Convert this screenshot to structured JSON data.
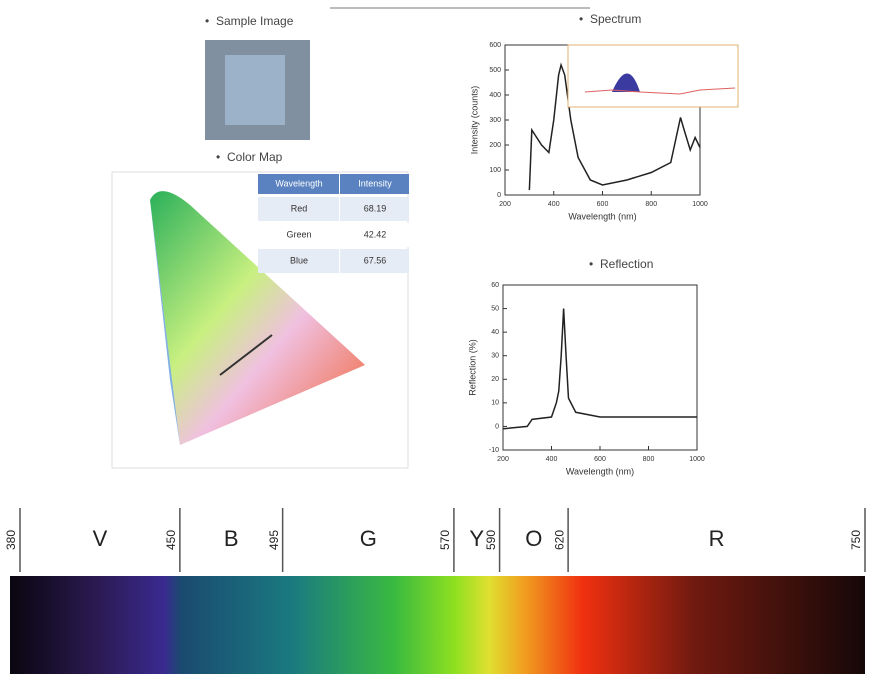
{
  "sample_image": {
    "title": "Sample Image"
  },
  "color_map": {
    "title": "Color Map",
    "table": {
      "header": [
        "Wavelength",
        "Intensity"
      ],
      "rows": [
        [
          "Red",
          "68.19"
        ],
        [
          "Green",
          "42.42"
        ],
        [
          "Blue",
          "67.56"
        ]
      ]
    }
  },
  "chart_data": [
    {
      "type": "line",
      "title": "Spectrum",
      "x_label": "Wavelength (nm)",
      "y_label": "Intensity (counts)",
      "x": [
        300,
        310,
        330,
        350,
        380,
        400,
        420,
        430,
        445,
        470,
        500,
        550,
        600,
        700,
        800,
        880,
        900,
        920,
        935,
        960,
        980,
        1000
      ],
      "series": [
        {
          "name": "Intensity",
          "color": "#222222",
          "values": [
            20,
            260,
            230,
            200,
            170,
            300,
            480,
            520,
            480,
            300,
            150,
            60,
            40,
            60,
            90,
            130,
            220,
            310,
            260,
            180,
            230,
            190
          ]
        }
      ],
      "xlim": [
        200,
        1000
      ],
      "xticks": [
        200,
        400,
        600,
        800,
        1000
      ],
      "ylim": [
        0,
        600
      ],
      "yticks": [
        0,
        100,
        200,
        300,
        400,
        500,
        600
      ]
    },
    {
      "type": "line",
      "title": "Reflection",
      "x_label": "Wavelength (nm)",
      "y_label": "Reflection (%)",
      "x": [
        200,
        300,
        320,
        400,
        420,
        430,
        440,
        450,
        460,
        470,
        500,
        600,
        800,
        1000
      ],
      "series": [
        {
          "name": "Reflection",
          "color": "#222222",
          "values": [
            -1,
            0,
            3,
            4,
            10,
            15,
            30,
            50,
            30,
            12,
            6,
            4,
            4,
            4
          ]
        }
      ],
      "xlim": [
        200,
        1000
      ],
      "xticks": [
        200,
        400,
        600,
        800,
        1000
      ],
      "ylim": [
        -10,
        60
      ],
      "yticks": [
        -10,
        0,
        10,
        20,
        30,
        40,
        50,
        60
      ]
    }
  ],
  "spectrum_bar": {
    "boundaries": [
      380,
      450,
      495,
      570,
      590,
      620,
      750
    ],
    "bands": [
      "V",
      "B",
      "G",
      "Y",
      "O",
      "R"
    ]
  }
}
